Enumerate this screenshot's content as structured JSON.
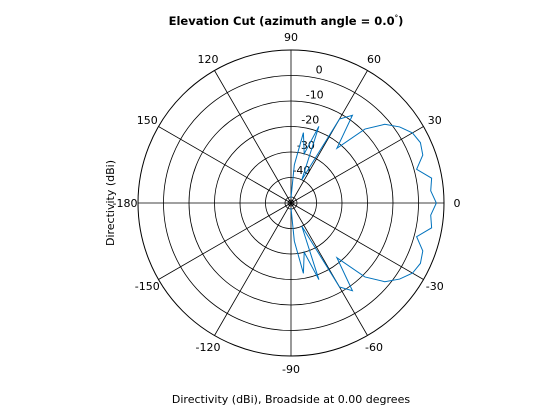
{
  "chart_data": {
    "type": "polar-line",
    "title_main": "Elevation Cut (azimuth angle = 0.0",
    "title_degree": "°",
    "title_end": ")",
    "xlabel": "Directivity (dBi), Broadside at 0.00 degrees",
    "ylabel": "Directivity (dBi)",
    "rlim": [
      -50,
      10
    ],
    "radial_ticks": [
      0,
      -10,
      -20,
      -30,
      -40
    ],
    "radial_tick_labels": [
      "0",
      "-10",
      "-20",
      "-30",
      "-40"
    ],
    "angle_ticks": [
      90,
      60,
      30,
      0,
      -30,
      -60,
      -90,
      -120,
      -150,
      180,
      150,
      120
    ],
    "angle_tick_labels": [
      "90",
      "60",
      "30",
      "0",
      "-30",
      "-60",
      "-90",
      "-120",
      "-150",
      "-180",
      "150",
      "120"
    ],
    "grid": true,
    "series_color": "#0072bd",
    "series": [
      {
        "name": "",
        "angle_deg": [
          -90,
          -85,
          -80,
          -75,
          -70,
          -65,
          -60,
          -55,
          -50,
          -45,
          -40,
          -35,
          -30,
          -25,
          -20,
          -15,
          -10,
          -5,
          0,
          5,
          10,
          15,
          20,
          25,
          30,
          35,
          40,
          45,
          50,
          55,
          60,
          65,
          70,
          75,
          80,
          85,
          90
        ],
        "directivity_dbi": [
          -48,
          -35,
          -22,
          -30,
          -18,
          -40,
          -12,
          -8,
          -22,
          -9,
          -2,
          2,
          5,
          6,
          5,
          1,
          6,
          5,
          7,
          5,
          6,
          1,
          5,
          6,
          5,
          2,
          -2,
          -9,
          -22,
          -8,
          -12,
          -40,
          -18,
          -30,
          -22,
          -35,
          -48
        ]
      }
    ]
  }
}
